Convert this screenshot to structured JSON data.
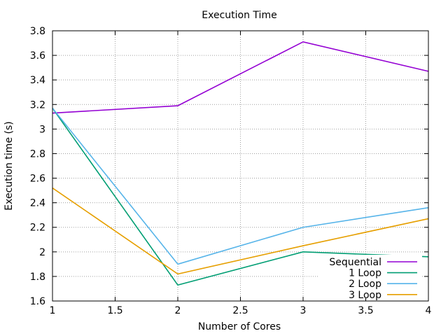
{
  "chart_data": {
    "type": "line",
    "title": "Execution Time",
    "xlabel": "Number of Cores",
    "ylabel": "Execution time (s)",
    "xlim": [
      1,
      4
    ],
    "ylim": [
      1.6,
      3.8
    ],
    "x_ticks": [
      1,
      1.5,
      2,
      2.5,
      3,
      3.5,
      4
    ],
    "x_tick_labels": [
      "1",
      "1.5",
      "2",
      "2.5",
      "3",
      "3.5",
      "4"
    ],
    "y_ticks": [
      1.6,
      1.8,
      2,
      2.2,
      2.4,
      2.6,
      2.8,
      3,
      3.2,
      3.4,
      3.6,
      3.8
    ],
    "y_tick_labels": [
      "1.6",
      "1.8",
      "2",
      "2.2",
      "2.4",
      "2.6",
      "2.8",
      "3",
      "3.2",
      "3.4",
      "3.6",
      "3.8"
    ],
    "grid": true,
    "legend_position": "bottom-right",
    "x": [
      1,
      2,
      3,
      4
    ],
    "series": [
      {
        "name": "Sequential",
        "values": [
          3.13,
          3.19,
          3.71,
          3.47
        ],
        "color": "#9400d3"
      },
      {
        "name": "1 Loop",
        "values": [
          3.17,
          1.73,
          2.0,
          1.96
        ],
        "color": "#009e73"
      },
      {
        "name": "2 Loop",
        "values": [
          3.17,
          1.9,
          2.2,
          2.36
        ],
        "color": "#56b4e9"
      },
      {
        "name": "3 Loop",
        "values": [
          2.52,
          1.82,
          2.05,
          2.27
        ],
        "color": "#e69f00"
      }
    ]
  }
}
